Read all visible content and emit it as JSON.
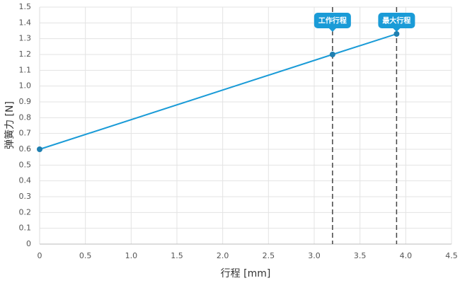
{
  "chart_data": {
    "type": "line",
    "x_label": "行程 [mm]",
    "y_label": "弹簧力 [N]",
    "series": [
      {
        "color": "#1a9bd7",
        "marker_color": "#1f7fb0",
        "x": [
          0,
          3.2,
          3.9
        ],
        "values": [
          0.6,
          1.2,
          1.33
        ]
      }
    ],
    "annotations": [
      {
        "x": 3.2,
        "label": "工作行程"
      },
      {
        "x": 3.9,
        "label": "最大行程"
      }
    ],
    "annotation_color": "#1a9bd7",
    "xlim": [
      0,
      4.5
    ],
    "xticks": [
      0,
      0.5,
      {
        "value": 1,
        "label": "1.0"
      },
      1.5,
      {
        "value": 2,
        "label": "2.0"
      },
      2.5,
      {
        "value": 3,
        "label": "3.0"
      },
      3.5,
      {
        "value": 4,
        "label": "4.0"
      },
      4.5
    ],
    "ylim": [
      0,
      1.5
    ],
    "yticks": [
      0,
      0.1,
      0.2,
      0.3,
      0.4,
      0.5,
      0.6,
      0.7,
      0.8,
      0.9,
      {
        "value": 1,
        "label": "1.0"
      },
      1.1,
      1.2,
      1.3,
      1.4,
      1.5
    ],
    "grid": true
  }
}
